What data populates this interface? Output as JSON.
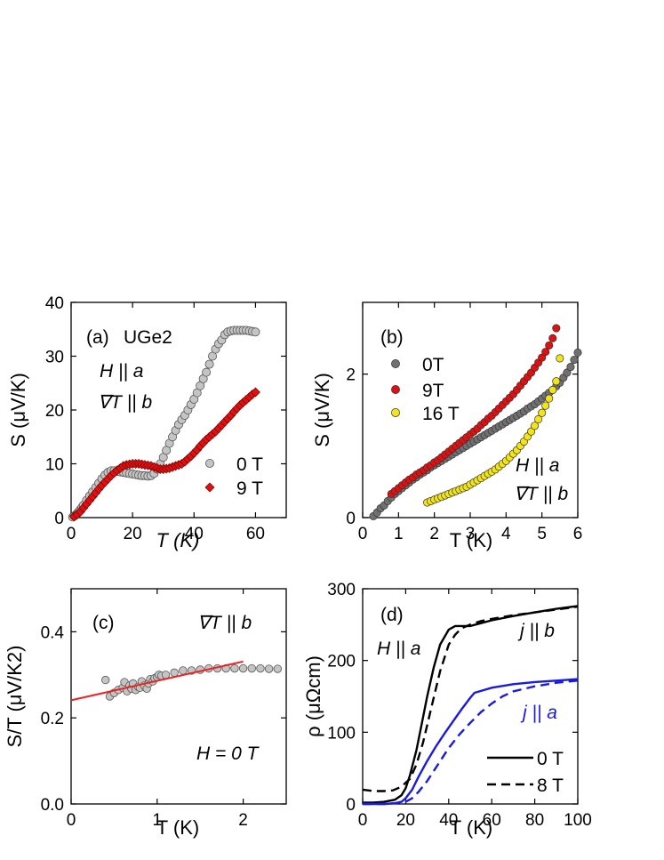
{
  "chart_data": [
    {
      "panel": "(a)",
      "type": "scatter",
      "title": "UGe2",
      "xlabel": "T (K)",
      "ylabel": "S (μV/K)",
      "xlim": [
        0,
        70
      ],
      "ylim": [
        0,
        40
      ],
      "xticks": [
        0,
        20,
        40,
        60
      ],
      "yticks": [
        0,
        10,
        20,
        30,
        40
      ],
      "annotations": [
        "H || a",
        "∇T || b"
      ],
      "colors": {
        "0 T": "#c4c4c4",
        "9 T": "#dd1111"
      },
      "series": [
        {
          "name": "0 T",
          "marker": "circle",
          "x": [
            0.5,
            1,
            1.5,
            2,
            2.5,
            3,
            3.5,
            4,
            5,
            6,
            7,
            8,
            9,
            10,
            11,
            12,
            13,
            14,
            15,
            16,
            17,
            18,
            19,
            20,
            21,
            22,
            23,
            24,
            25,
            26,
            27,
            28,
            29,
            30,
            31,
            32,
            33,
            34,
            35,
            36,
            37,
            38,
            39,
            40,
            41,
            42,
            43,
            44,
            45,
            46,
            47,
            48,
            49,
            50,
            51,
            52,
            53,
            54,
            55,
            56,
            57,
            58,
            59,
            60
          ],
          "y": [
            0.1,
            0.3,
            0.5,
            0.8,
            1.1,
            1.5,
            1.9,
            2.3,
            3.2,
            4.0,
            4.8,
            5.6,
            6.4,
            7.2,
            7.9,
            8.4,
            8.7,
            8.7,
            8.6,
            8.5,
            8.4,
            8.3,
            8.2,
            8.1,
            8.0,
            7.9,
            7.8,
            7.8,
            7.7,
            7.8,
            8.2,
            9.0,
            10.0,
            11.2,
            12.5,
            13.8,
            15.0,
            16.2,
            17.3,
            18.2,
            19.0,
            20.0,
            21.0,
            22.0,
            23.2,
            24.5,
            25.8,
            27.0,
            28.5,
            30.0,
            31.3,
            32.3,
            33.0,
            34.0,
            34.5,
            34.7,
            34.8,
            34.8,
            34.8,
            34.8,
            34.8,
            34.7,
            34.6,
            34.5
          ]
        },
        {
          "name": "9 T",
          "marker": "diamond",
          "x": [
            1,
            2,
            3,
            4,
            5,
            6,
            7,
            8,
            9,
            10,
            11,
            12,
            13,
            14,
            15,
            16,
            17,
            18,
            19,
            20,
            21,
            22,
            23,
            24,
            25,
            26,
            27,
            28,
            29,
            30,
            31,
            32,
            33,
            34,
            35,
            36,
            37,
            38,
            39,
            40,
            41,
            42,
            43,
            44,
            45,
            46,
            47,
            48,
            49,
            50,
            51,
            52,
            53,
            54,
            55,
            56,
            57,
            58,
            59,
            60
          ],
          "y": [
            0.2,
            0.6,
            1.1,
            1.8,
            2.5,
            3.2,
            3.9,
            4.6,
            5.3,
            6.0,
            6.6,
            7.2,
            7.8,
            8.3,
            8.8,
            9.2,
            9.6,
            9.8,
            9.9,
            10.0,
            10.0,
            10.0,
            9.9,
            9.8,
            9.7,
            9.6,
            9.4,
            9.2,
            9.0,
            9.0,
            9.1,
            9.2,
            9.4,
            9.6,
            9.8,
            10.0,
            10.4,
            10.9,
            11.4,
            12.0,
            12.6,
            13.3,
            13.9,
            14.5,
            15.0,
            15.5,
            16.0,
            16.6,
            17.2,
            17.8,
            18.4,
            19.0,
            19.7,
            20.3,
            20.9,
            21.4,
            21.9,
            22.4,
            22.9,
            23.3
          ]
        }
      ]
    },
    {
      "panel": "(b)",
      "type": "scatter",
      "xlabel": "T (K)",
      "ylabel": "S (μV/K)",
      "xlim": [
        0,
        6
      ],
      "ylim": [
        0,
        3
      ],
      "xticks": [
        0,
        1,
        2,
        3,
        4,
        5,
        6
      ],
      "yticks": [
        0,
        2
      ],
      "annotations": [
        "H || a",
        "∇T || b"
      ],
      "colors": {
        "0T": "#707070",
        "9T": "#dd1111",
        "16 T": "#f2e418"
      },
      "series": [
        {
          "name": "0T",
          "x": [
            0.3,
            0.4,
            0.5,
            0.6,
            0.7,
            0.8,
            0.9,
            1.0,
            1.1,
            1.2,
            1.3,
            1.4,
            1.5,
            1.6,
            1.7,
            1.8,
            1.9,
            2.0,
            2.1,
            2.2,
            2.3,
            2.4,
            2.5,
            2.6,
            2.7,
            2.8,
            2.9,
            3.0,
            3.1,
            3.2,
            3.3,
            3.4,
            3.5,
            3.6,
            3.7,
            3.8,
            3.9,
            4.0,
            4.1,
            4.2,
            4.3,
            4.4,
            4.5,
            4.6,
            4.7,
            4.8,
            4.9,
            5.0,
            5.1,
            5.2,
            5.3,
            5.4,
            5.5,
            5.6,
            5.7,
            5.8,
            5.9,
            6.0
          ],
          "y": [
            0.02,
            0.07,
            0.13,
            0.17,
            0.23,
            0.28,
            0.33,
            0.37,
            0.41,
            0.45,
            0.49,
            0.53,
            0.56,
            0.6,
            0.63,
            0.66,
            0.7,
            0.73,
            0.76,
            0.79,
            0.82,
            0.85,
            0.88,
            0.91,
            0.94,
            0.97,
            1.0,
            1.03,
            1.06,
            1.09,
            1.12,
            1.15,
            1.18,
            1.21,
            1.24,
            1.27,
            1.3,
            1.33,
            1.36,
            1.39,
            1.42,
            1.45,
            1.48,
            1.52,
            1.55,
            1.58,
            1.62,
            1.66,
            1.7,
            1.74,
            1.78,
            1.83,
            1.88,
            1.95,
            2.02,
            2.1,
            2.2,
            2.3
          ]
        },
        {
          "name": "9T",
          "x": [
            0.8,
            0.9,
            1.0,
            1.1,
            1.2,
            1.3,
            1.4,
            1.5,
            1.6,
            1.7,
            1.8,
            1.9,
            2.0,
            2.1,
            2.2,
            2.3,
            2.4,
            2.5,
            2.6,
            2.7,
            2.8,
            2.9,
            3.0,
            3.1,
            3.2,
            3.3,
            3.4,
            3.5,
            3.6,
            3.7,
            3.8,
            3.9,
            4.0,
            4.1,
            4.2,
            4.3,
            4.4,
            4.5,
            4.6,
            4.7,
            4.8,
            4.9,
            5.0,
            5.1,
            5.2,
            5.3,
            5.4
          ],
          "y": [
            0.33,
            0.37,
            0.41,
            0.45,
            0.49,
            0.53,
            0.56,
            0.6,
            0.63,
            0.66,
            0.7,
            0.73,
            0.77,
            0.8,
            0.84,
            0.88,
            0.92,
            0.96,
            1.0,
            1.04,
            1.08,
            1.12,
            1.16,
            1.2,
            1.24,
            1.29,
            1.33,
            1.38,
            1.42,
            1.47,
            1.52,
            1.57,
            1.62,
            1.67,
            1.72,
            1.78,
            1.84,
            1.9,
            1.96,
            2.02,
            2.09,
            2.16,
            2.23,
            2.31,
            2.4,
            2.5,
            2.64
          ]
        },
        {
          "name": "16 T",
          "x": [
            1.8,
            1.9,
            2.0,
            2.1,
            2.2,
            2.3,
            2.4,
            2.5,
            2.6,
            2.7,
            2.8,
            2.9,
            3.0,
            3.1,
            3.2,
            3.3,
            3.4,
            3.5,
            3.6,
            3.7,
            3.8,
            3.9,
            4.0,
            4.1,
            4.2,
            4.3,
            4.4,
            4.5,
            4.6,
            4.7,
            4.8,
            4.9,
            5.0,
            5.1,
            5.2,
            5.3,
            5.4,
            5.5
          ],
          "y": [
            0.21,
            0.23,
            0.25,
            0.27,
            0.29,
            0.31,
            0.33,
            0.35,
            0.37,
            0.39,
            0.41,
            0.43,
            0.46,
            0.49,
            0.52,
            0.55,
            0.58,
            0.61,
            0.64,
            0.67,
            0.71,
            0.75,
            0.79,
            0.84,
            0.89,
            0.94,
            1.0,
            1.06,
            1.13,
            1.2,
            1.28,
            1.37,
            1.46,
            1.56,
            1.66,
            1.78,
            1.9,
            2.22
          ]
        }
      ]
    },
    {
      "panel": "(c)",
      "type": "scatter",
      "xlabel": "T (K)",
      "ylabel": "S/T (μV/K2)",
      "xlim": [
        0,
        2.5
      ],
      "ylim": [
        0,
        0.5
      ],
      "xticks": [
        0,
        1,
        2
      ],
      "yticks": [
        0.0,
        0.2,
        0.4
      ],
      "annotations": [
        "∇T || b",
        "H = 0 T"
      ],
      "colors": {
        "points": "#c4c4c4",
        "fit": "#ee2222"
      },
      "series": [
        {
          "name": "H = 0 T",
          "x": [
            0.4,
            0.45,
            0.5,
            0.55,
            0.6,
            0.62,
            0.65,
            0.68,
            0.7,
            0.72,
            0.75,
            0.78,
            0.8,
            0.82,
            0.85,
            0.88,
            0.9,
            0.92,
            0.95,
            0.97,
            1.0,
            1.02,
            1.05,
            1.1,
            1.2,
            1.3,
            1.4,
            1.5,
            1.6,
            1.7,
            1.8,
            1.9,
            2.0,
            2.1,
            2.2,
            2.3,
            2.4
          ],
          "y": [
            0.288,
            0.25,
            0.258,
            0.265,
            0.27,
            0.283,
            0.262,
            0.275,
            0.268,
            0.28,
            0.265,
            0.272,
            0.27,
            0.285,
            0.275,
            0.268,
            0.28,
            0.29,
            0.285,
            0.292,
            0.295,
            0.3,
            0.298,
            0.3,
            0.305,
            0.31,
            0.31,
            0.312,
            0.315,
            0.315,
            0.315,
            0.315,
            0.315,
            0.315,
            0.315,
            0.314,
            0.314
          ]
        }
      ],
      "fit": {
        "name": "linear fit",
        "x": [
          0,
          2.0
        ],
        "y": [
          0.241,
          0.331
        ]
      }
    },
    {
      "panel": "(d)",
      "type": "line",
      "xlabel": "T (K)",
      "ylabel": "ρ (μΩcm)",
      "xlim": [
        0,
        100
      ],
      "ylim": [
        0,
        300
      ],
      "xticks": [
        0,
        20,
        40,
        60,
        80,
        100
      ],
      "yticks": [
        0,
        100,
        200,
        300
      ],
      "annotations": [
        "H || a",
        "j || b",
        "j || a"
      ],
      "colors": {
        "j || b": "#000000",
        "j || a": "#1a1ae0"
      },
      "legend": [
        "0 T",
        "8 T"
      ],
      "series": [
        {
          "name": "j || b, 0 T",
          "style": "solid",
          "color": "#000000",
          "x": [
            0,
            5,
            10,
            15,
            18,
            20,
            22,
            25,
            28,
            30,
            33,
            36,
            40,
            43,
            46,
            50,
            55,
            60,
            70,
            80,
            90,
            100
          ],
          "y": [
            2,
            2,
            3,
            6,
            12,
            22,
            40,
            75,
            120,
            150,
            190,
            222,
            243,
            248,
            248,
            248,
            252,
            256,
            262,
            267,
            272,
            276
          ]
        },
        {
          "name": "j || b, 8 T",
          "style": "dashed",
          "color": "#000000",
          "x": [
            0,
            5,
            10,
            14,
            18,
            22,
            25,
            28,
            30,
            33,
            36,
            40,
            43,
            46,
            50,
            55,
            60,
            70,
            80,
            90,
            100
          ],
          "y": [
            20,
            18,
            18,
            19,
            24,
            35,
            55,
            85,
            110,
            148,
            185,
            222,
            236,
            245,
            250,
            255,
            258,
            263,
            267,
            271,
            275
          ]
        },
        {
          "name": "j || a, 0 T",
          "style": "solid",
          "color": "#1a1ae0",
          "x": [
            0,
            10,
            15,
            18,
            20,
            23,
            26,
            30,
            34,
            38,
            42,
            46,
            50,
            52,
            60,
            70,
            80,
            90,
            100
          ],
          "y": [
            0,
            0,
            1,
            3,
            8,
            20,
            38,
            60,
            80,
            98,
            115,
            132,
            148,
            155,
            162,
            167,
            170,
            172,
            174
          ]
        },
        {
          "name": "j || a, 8 T",
          "style": "dashed",
          "color": "#1a1ae0",
          "x": [
            0,
            10,
            15,
            20,
            23,
            26,
            30,
            35,
            40,
            45,
            50,
            55,
            60,
            65,
            70,
            80,
            90,
            100
          ],
          "y": [
            0,
            0,
            1,
            3,
            8,
            17,
            32,
            55,
            78,
            97,
            113,
            128,
            140,
            150,
            157,
            164,
            169,
            172
          ]
        }
      ]
    }
  ]
}
